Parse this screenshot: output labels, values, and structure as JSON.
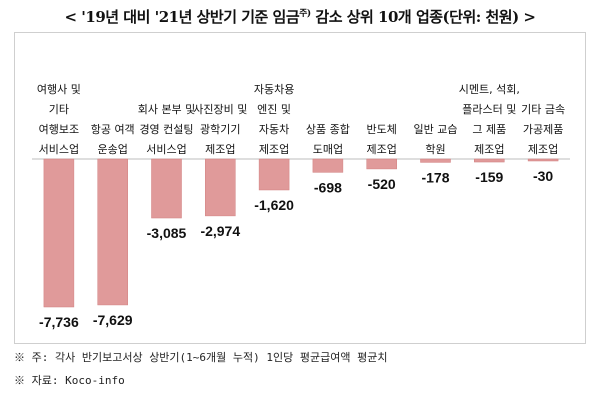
{
  "header": {
    "title": "< '19년 대비 '21년 상반기 기준 임금",
    "title_sup": "주)",
    "title_suffix": " 감소 상위 10개 업종(단위: 천원) >"
  },
  "notes": {
    "note1": "※ 주: 각사 반기보고서상 상반기(1~6개월 누적) 1인당 평균급여액 평균치",
    "note2": "※ 자료: Koco-info"
  },
  "colors": {
    "bar": "#e09a9a",
    "bar_stroke": "#d07f7f",
    "axis": "#bdbdbd"
  },
  "chart_data": {
    "type": "bar",
    "unit": "천원",
    "categories": [
      [
        "여행사 및",
        "기타",
        "여행보조",
        "서비스업"
      ],
      [
        "항공 여객",
        "운송업"
      ],
      [
        "회사 본부 및",
        "경영 컨설팅",
        "서비스업"
      ],
      [
        "사진장비 및",
        "광학기기",
        "제조업"
      ],
      [
        "자동차용",
        "엔진 및",
        "자동차",
        "제조업"
      ],
      [
        "상품 종합",
        "도매업"
      ],
      [
        "반도체",
        "제조업"
      ],
      [
        "일반 교습",
        "학원"
      ],
      [
        "시멘트, 석회,",
        "플라스터 및",
        "그 제품",
        "제조업"
      ],
      [
        "기타 금속",
        "가공제품",
        "제조업"
      ]
    ],
    "values": [
      -7736,
      -7629,
      -3085,
      -2974,
      -1620,
      -698,
      -520,
      -178,
      -159,
      -30
    ],
    "value_labels": [
      "-7,736",
      "-7,629",
      "-3,085",
      "-2,974",
      "-1,620",
      "-698",
      "-520",
      "-178",
      "-159",
      "-30"
    ]
  }
}
